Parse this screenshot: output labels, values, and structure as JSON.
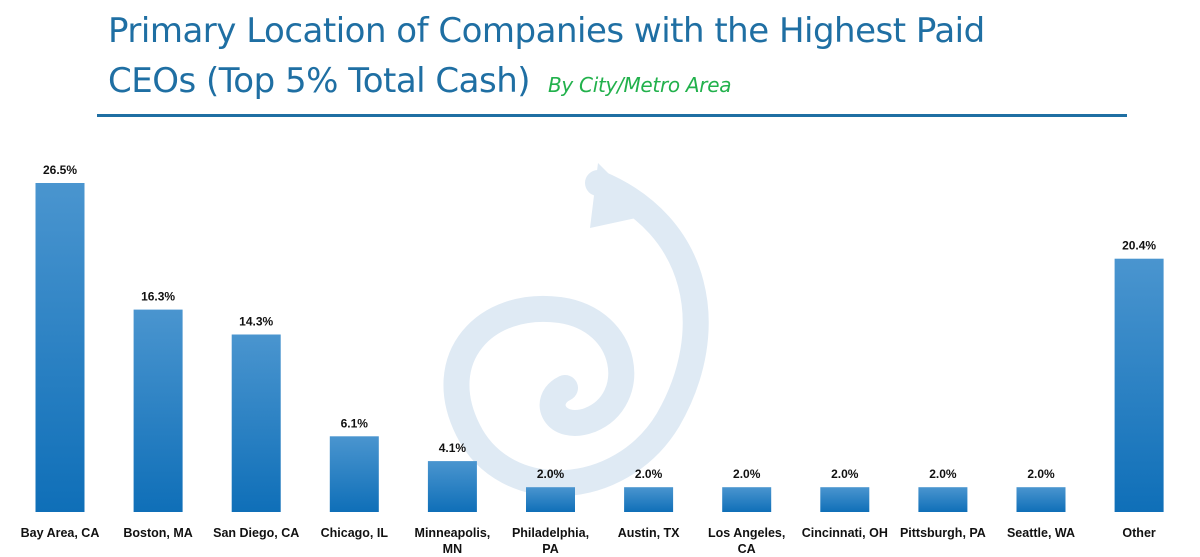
{
  "header": {
    "title_line1": "Primary Location of Companies with the Highest Paid",
    "title_line2": "CEOs (Top 5% Total Cash)",
    "subtitle": "By City/Metro Area"
  },
  "colors": {
    "title": "#1f6fa3",
    "subtitle": "#22b14c",
    "bar_top": "#4a95cf",
    "bar_bottom": "#0f6fb8",
    "watermark": "#dfeaf4"
  },
  "chart_data": {
    "type": "bar",
    "title": "Primary Location of Companies with the Highest Paid CEOs (Top 5% Total Cash)",
    "subtitle": "By City/Metro Area",
    "categories": [
      [
        "Bay Area, CA"
      ],
      [
        "Boston, MA"
      ],
      [
        "San Diego, CA"
      ],
      [
        "Chicago, IL"
      ],
      [
        "Minneapolis,",
        "MN"
      ],
      [
        "Philadelphia,",
        "PA"
      ],
      [
        "Austin, TX"
      ],
      [
        "Los Angeles,",
        "CA"
      ],
      [
        "Cincinnati, OH"
      ],
      [
        "Pittsburgh, PA"
      ],
      [
        "Seattle, WA"
      ],
      [
        "Other"
      ]
    ],
    "values": [
      26.5,
      16.3,
      14.3,
      6.1,
      4.1,
      2.0,
      2.0,
      2.0,
      2.0,
      2.0,
      2.0,
      20.4
    ],
    "value_labels": [
      "26.5%",
      "16.3%",
      "14.3%",
      "6.1%",
      "4.1%",
      "2.0%",
      "2.0%",
      "2.0%",
      "2.0%",
      "2.0%",
      "2.0%",
      "20.4%"
    ],
    "unit": "%",
    "ylim": [
      0,
      26.5
    ],
    "grid": false,
    "legend": "none",
    "data_labels": "above bars"
  }
}
